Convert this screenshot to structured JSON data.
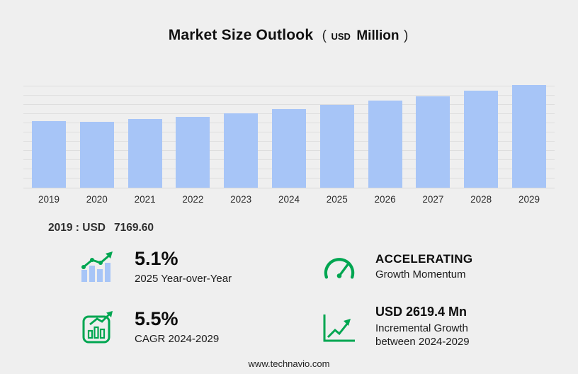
{
  "title": {
    "main": "Market Size Outlook",
    "paren_open": "(",
    "unit_small": "USD",
    "unit_big": "Million",
    "paren_close": ")"
  },
  "chart_data": {
    "type": "bar",
    "title": "Market Size Outlook (USD Million)",
    "xlabel": "",
    "ylabel": "USD Million",
    "categories": [
      "2019",
      "2020",
      "2021",
      "2022",
      "2023",
      "2024",
      "2025",
      "2026",
      "2027",
      "2028",
      "2029"
    ],
    "values": [
      7169.6,
      7120,
      7400,
      7690,
      8060,
      8532,
      8967,
      9430,
      9920,
      10480,
      11151.4
    ],
    "ylim": [
      0,
      11500
    ],
    "grid_step": 1000,
    "grid": true,
    "legend": false,
    "bar_color": "#a7c5f7"
  },
  "note": {
    "label": "2019 : USD",
    "value": "7169.60"
  },
  "stats": [
    {
      "id": "yoy",
      "icon": "bar-chart-trend-icon",
      "value": "5.1%",
      "label": "2025 Year-over-Year"
    },
    {
      "id": "momentum",
      "icon": "speedometer-icon",
      "value": "ACCELERATING",
      "label": "Growth Momentum"
    },
    {
      "id": "cagr",
      "icon": "boxed-growth-chart-icon",
      "value": "5.5%",
      "label": "CAGR 2024-2029"
    },
    {
      "id": "incremental",
      "icon": "trend-up-axis-icon",
      "value": "USD 2619.4 Mn",
      "label": "Incremental Growth",
      "label2": "between 2024-2029"
    }
  ],
  "footer": {
    "url": "www.technavio.com"
  },
  "colors": {
    "accent_green": "#00a651",
    "bar_blue": "#a7c5f7",
    "background": "#efefef"
  }
}
